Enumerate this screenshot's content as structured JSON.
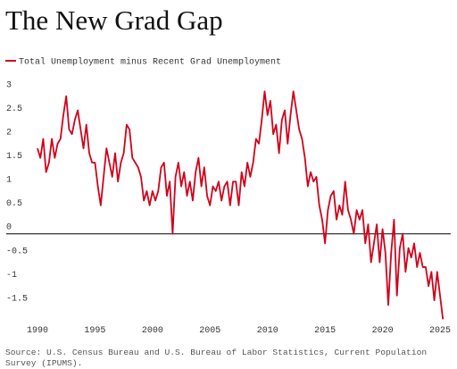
{
  "chart_data": {
    "type": "line",
    "title": "The New Grad Gap",
    "source": "Source: U.S. Census Bureau and U.S. Bureau of Labor Statistics, Current Population Survey (IPUMS).",
    "x": [
      1990,
      1990.25,
      1990.5,
      1990.75,
      1991,
      1991.25,
      1991.5,
      1991.75,
      1992,
      1992.25,
      1992.5,
      1992.75,
      1993,
      1993.25,
      1993.5,
      1993.75,
      1994,
      1994.25,
      1994.5,
      1994.75,
      1995,
      1995.25,
      1995.5,
      1995.75,
      1996,
      1996.25,
      1996.5,
      1996.75,
      1997,
      1997.25,
      1997.5,
      1997.75,
      1998,
      1998.25,
      1998.5,
      1998.75,
      1999,
      1999.25,
      1999.5,
      1999.75,
      2000,
      2000.25,
      2000.5,
      2000.75,
      2001,
      2001.25,
      2001.5,
      2001.75,
      2002,
      2002.25,
      2002.5,
      2002.75,
      2003,
      2003.25,
      2003.5,
      2003.75,
      2004,
      2004.25,
      2004.5,
      2004.75,
      2005,
      2005.25,
      2005.5,
      2005.75,
      2006,
      2006.25,
      2006.5,
      2006.75,
      2007,
      2007.25,
      2007.5,
      2007.75,
      2008,
      2008.25,
      2008.5,
      2008.75,
      2009,
      2009.25,
      2009.5,
      2009.75,
      2010,
      2010.25,
      2010.5,
      2010.75,
      2011,
      2011.25,
      2011.5,
      2011.75,
      2012,
      2012.25,
      2012.5,
      2012.75,
      2013,
      2013.25,
      2013.5,
      2013.75,
      2014,
      2014.25,
      2014.5,
      2014.75,
      2015,
      2015.25,
      2015.5,
      2015.75,
      2016,
      2016.25,
      2016.5,
      2016.75,
      2017,
      2017.25,
      2017.5,
      2017.75,
      2018,
      2018.25,
      2018.5,
      2018.75,
      2019,
      2019.25,
      2019.5,
      2019.75,
      2020,
      2020.25,
      2020.5,
      2020.75,
      2021,
      2021.25,
      2021.5,
      2021.75,
      2022,
      2022.25,
      2022.5,
      2022.75,
      2023,
      2023.25,
      2023.5,
      2023.75,
      2024,
      2024.25,
      2024.5,
      2024.75,
      2025,
      2025.25
    ],
    "series": [
      {
        "name": "Total Unemployment minus Recent Grad Unemployment",
        "color": "#d0021b",
        "values": [
          1.8,
          1.6,
          2.0,
          1.3,
          1.5,
          2.0,
          1.6,
          1.9,
          2.0,
          2.5,
          2.9,
          2.2,
          2.1,
          2.4,
          2.6,
          2.2,
          1.8,
          2.3,
          1.7,
          1.5,
          1.5,
          1.0,
          0.6,
          1.2,
          1.8,
          1.5,
          1.2,
          1.7,
          1.1,
          1.5,
          1.7,
          2.3,
          2.2,
          1.6,
          1.5,
          1.4,
          1.2,
          0.7,
          0.9,
          0.6,
          0.9,
          0.7,
          0.9,
          1.4,
          1.5,
          0.8,
          1.1,
          0.0,
          1.2,
          1.5,
          1.0,
          1.3,
          0.8,
          1.1,
          0.7,
          1.3,
          1.6,
          1.0,
          1.4,
          0.8,
          0.6,
          1.0,
          0.9,
          1.1,
          0.7,
          1.0,
          1.1,
          0.6,
          1.1,
          1.1,
          0.6,
          1.3,
          1.0,
          1.5,
          1.2,
          1.5,
          2.0,
          1.9,
          2.4,
          3.0,
          2.5,
          2.8,
          2.1,
          2.3,
          1.7,
          2.4,
          2.6,
          1.9,
          2.5,
          3.0,
          2.6,
          2.2,
          2.0,
          1.6,
          1.0,
          1.3,
          1.1,
          1.2,
          0.6,
          0.3,
          -0.2,
          0.5,
          0.8,
          0.9,
          0.3,
          0.6,
          0.4,
          1.1,
          0.5,
          0.3,
          0.0,
          0.5,
          0.3,
          0.5,
          -0.2,
          0.2,
          -0.6,
          -0.2,
          0.2,
          -0.6,
          0.1,
          -0.4,
          -1.5,
          -0.4,
          0.3,
          -1.3,
          -0.3,
          0.0,
          -0.8,
          -0.3,
          -0.5,
          -0.2,
          -0.7,
          -0.4,
          -0.7,
          -0.7,
          -1.1,
          -0.8,
          -1.4,
          -0.8,
          -1.3,
          -1.8
        ]
      }
    ],
    "xlim": [
      1989,
      2026
    ],
    "xticks": [
      1990,
      1995,
      2000,
      2005,
      2010,
      2015,
      2020,
      2025
    ],
    "ylim": [
      -1.9,
      3.15
    ],
    "yticks": [
      3,
      2.5,
      2,
      1.5,
      1,
      0.5,
      0,
      -0.5,
      -1,
      -1.5
    ],
    "grid": false
  }
}
